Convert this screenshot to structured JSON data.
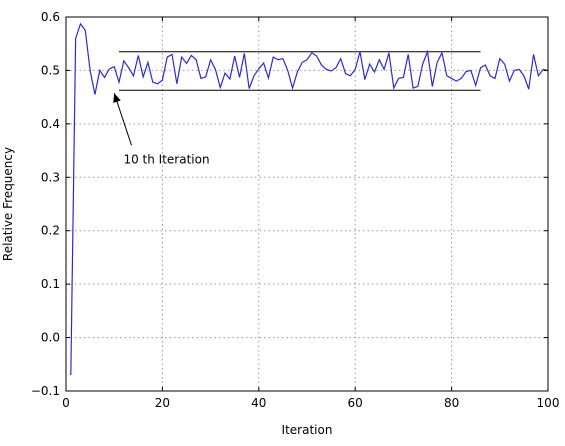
{
  "chart_data": {
    "type": "line",
    "xlabel": "Iteration",
    "ylabel": "Relative Frequency",
    "xlim": [
      0,
      100
    ],
    "ylim": [
      -0.1,
      0.6
    ],
    "x_ticks": [
      0,
      20,
      40,
      60,
      80,
      100
    ],
    "y_ticks": [
      -0.1,
      0.0,
      0.1,
      0.2,
      0.3,
      0.4,
      0.5,
      0.6
    ],
    "x_tick_labels": [
      "0",
      "20",
      "40",
      "60",
      "80",
      "100"
    ],
    "y_tick_labels": [
      "−0.1",
      "0.0",
      "0.1",
      "0.2",
      "0.3",
      "0.4",
      "0.5",
      "0.6"
    ],
    "grid": true,
    "grid_style": "dotted",
    "series": [
      {
        "color": "#2b2bd0",
        "x": [
          1,
          2,
          3,
          4,
          5,
          6,
          7,
          8,
          9,
          10,
          11,
          12,
          13,
          14,
          15,
          16,
          17,
          18,
          19,
          20,
          21,
          22,
          23,
          24,
          25,
          26,
          27,
          28,
          29,
          30,
          31,
          32,
          33,
          34,
          35,
          36,
          37,
          38,
          39,
          40,
          41,
          42,
          43,
          44,
          45,
          46,
          47,
          48,
          49,
          50,
          51,
          52,
          53,
          54,
          55,
          56,
          57,
          58,
          59,
          60,
          61,
          62,
          63,
          64,
          65,
          66,
          67,
          68,
          69,
          70,
          71,
          72,
          73,
          74,
          75,
          76,
          77,
          78,
          79,
          80,
          81,
          82,
          83,
          84,
          85,
          86,
          87,
          88,
          89,
          90,
          91,
          92,
          93,
          94,
          95,
          96,
          97,
          98,
          99,
          100
        ],
        "values": [
          -0.07,
          0.56,
          0.587,
          0.575,
          0.5,
          0.455,
          0.5,
          0.487,
          0.503,
          0.507,
          0.478,
          0.518,
          0.505,
          0.49,
          0.528,
          0.488,
          0.515,
          0.478,
          0.475,
          0.482,
          0.525,
          0.53,
          0.475,
          0.525,
          0.513,
          0.528,
          0.52,
          0.485,
          0.488,
          0.52,
          0.502,
          0.468,
          0.495,
          0.484,
          0.527,
          0.487,
          0.532,
          0.466,
          0.49,
          0.503,
          0.514,
          0.486,
          0.525,
          0.52,
          0.522,
          0.5,
          0.467,
          0.497,
          0.515,
          0.52,
          0.533,
          0.527,
          0.51,
          0.502,
          0.499,
          0.505,
          0.522,
          0.494,
          0.49,
          0.502,
          0.535,
          0.483,
          0.512,
          0.497,
          0.52,
          0.502,
          0.533,
          0.467,
          0.485,
          0.487,
          0.53,
          0.467,
          0.47,
          0.512,
          0.535,
          0.47,
          0.515,
          0.533,
          0.49,
          0.485,
          0.48,
          0.485,
          0.498,
          0.5,
          0.472,
          0.505,
          0.51,
          0.49,
          0.485,
          0.522,
          0.512,
          0.48,
          0.5,
          0.502,
          0.49,
          0.465,
          0.53,
          0.49,
          0.502,
          0.5
        ]
      }
    ],
    "reference_lines": [
      {
        "y": 0.535,
        "x_start": 11,
        "x_end": 86,
        "color": "#000000"
      },
      {
        "y": 0.463,
        "x_start": 11,
        "x_end": 86,
        "color": "#000000"
      }
    ],
    "annotation": {
      "text": "10 th Iteration",
      "xy": [
        10,
        0.463
      ],
      "xytext": [
        14,
        0.33
      ]
    }
  }
}
